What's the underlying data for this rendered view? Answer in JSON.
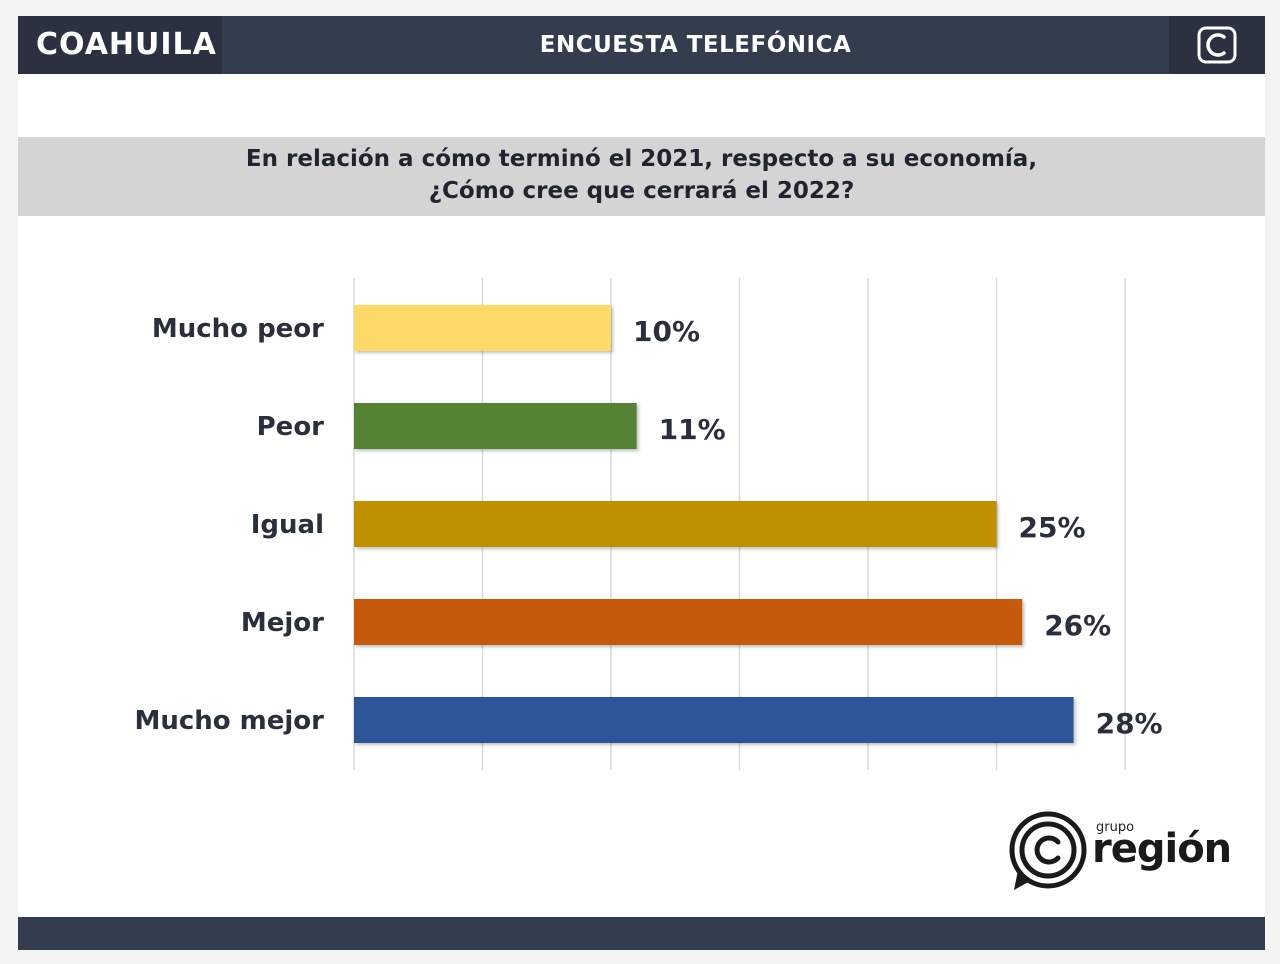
{
  "header": {
    "region": "COAHUILA",
    "survey_type": "ENCUESTA TELEFÓNICA",
    "corner_icon": "c-logo-icon"
  },
  "question": {
    "line1": "En relación a cómo terminó el 2021, respecto a su economía,",
    "line2": "¿Cómo cree que cerrará el 2022?"
  },
  "chart_data": {
    "type": "bar",
    "orientation": "horizontal",
    "title": "",
    "xlabel": "",
    "ylabel": "",
    "xlim": [
      0,
      30
    ],
    "grid": true,
    "categories": [
      "Mucho peor",
      "Peor",
      "Igual",
      "Mejor",
      "Mucho mejor"
    ],
    "values": [
      10,
      11,
      25,
      26,
      28
    ],
    "value_labels": [
      "10%",
      "11%",
      "25%",
      "26%",
      "28%"
    ],
    "colors": [
      "#fdd96b",
      "#548235",
      "#bf9000",
      "#c55a11",
      "#2f5597"
    ]
  },
  "brand": {
    "small": "grupo",
    "name": "región",
    "icon": "grupo-region-logo-icon"
  }
}
